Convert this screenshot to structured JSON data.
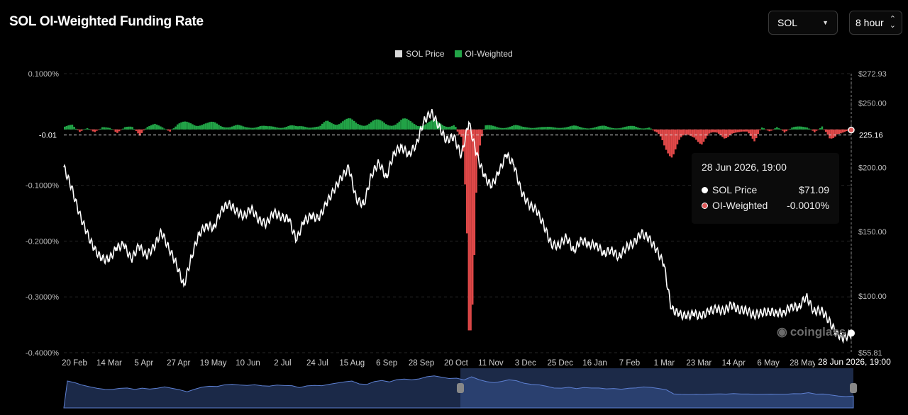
{
  "title": "SOL OI-Weighted Funding Rate",
  "controls": {
    "symbol": "SOL",
    "interval": "8 hour"
  },
  "legend": [
    {
      "label": "SOL Price",
      "color": "#d9d9d9"
    },
    {
      "label": "OI-Weighted",
      "color": "#22a447"
    }
  ],
  "tooltip": {
    "title": "28 Jun 2026, 19:00",
    "rows": [
      {
        "label": "SOL Price",
        "value": "$71.09",
        "dot_color": "#ffffff"
      },
      {
        "label": "OI-Weighted",
        "value": "-0.0010%",
        "dot_color": "#e05a5a"
      }
    ]
  },
  "watermark": "coinglass",
  "crosshair": {
    "x_label": "28 Jun 2026, 19:00",
    "y_left_label": "-0.01",
    "y_right_label": "225.16"
  },
  "chart_data": {
    "type": "line",
    "x_tick_labels": [
      "20 Feb",
      "14 Mar",
      "5 Apr",
      "27 Apr",
      "19 May",
      "10 Jun",
      "2 Jul",
      "24 Jul",
      "15 Aug",
      "6 Sep",
      "28 Sep",
      "20 Oct",
      "11 Nov",
      "3 Dec",
      "25 Dec",
      "16 Jan",
      "7 Feb",
      "1 Mar",
      "23 Mar",
      "14 Apr",
      "6 May",
      "28 May"
    ],
    "left_axis": {
      "ticks": [
        "0.1000%",
        "0",
        "-0.1000%",
        "-0.2000%",
        "-0.3000%",
        "-0.4000%"
      ],
      "values": [
        0.1,
        0,
        -0.1,
        -0.2,
        -0.3,
        -0.4
      ],
      "ylim": [
        -0.4,
        0.1
      ]
    },
    "right_axis": {
      "ticks": [
        "$272.93",
        "$250.00",
        "$200.00",
        "$150.00",
        "$100.00",
        "$55.81"
      ],
      "values": [
        272.93,
        250,
        200,
        150,
        100,
        55.81
      ],
      "ylim": [
        55.81,
        272.93
      ]
    },
    "series": [
      {
        "name": "SOL Price",
        "axis": "right",
        "color": "#ffffff",
        "points": [
          [
            0,
            200
          ],
          [
            1,
            185
          ],
          [
            2,
            165
          ],
          [
            3,
            150
          ],
          [
            4,
            137
          ],
          [
            5,
            129
          ],
          [
            6,
            128
          ],
          [
            7,
            137
          ],
          [
            8,
            140
          ],
          [
            9,
            128
          ],
          [
            10,
            139
          ],
          [
            11,
            131
          ],
          [
            12,
            138
          ],
          [
            13,
            150
          ],
          [
            14,
            137
          ],
          [
            15,
            125
          ],
          [
            16,
            108
          ],
          [
            17,
            130
          ],
          [
            18,
            148
          ],
          [
            19,
            155
          ],
          [
            20,
            153
          ],
          [
            21,
            167
          ],
          [
            22,
            172
          ],
          [
            23,
            166
          ],
          [
            24,
            162
          ],
          [
            25,
            168
          ],
          [
            26,
            159
          ],
          [
            27,
            156
          ],
          [
            28,
            165
          ],
          [
            29,
            161
          ],
          [
            30,
            160
          ],
          [
            31,
            143
          ],
          [
            32,
            158
          ],
          [
            33,
            162
          ],
          [
            34,
            160
          ],
          [
            35,
            172
          ],
          [
            36,
            182
          ],
          [
            37,
            192
          ],
          [
            38,
            200
          ],
          [
            39,
            175
          ],
          [
            40,
            171
          ],
          [
            41,
            194
          ],
          [
            42,
            204
          ],
          [
            43,
            192
          ],
          [
            44,
            211
          ],
          [
            45,
            216
          ],
          [
            46,
            210
          ],
          [
            47,
            218
          ],
          [
            48,
            236
          ],
          [
            49,
            243
          ],
          [
            50,
            232
          ],
          [
            51,
            221
          ],
          [
            52,
            224
          ],
          [
            53,
            209
          ],
          [
            54,
            235
          ],
          [
            55,
            211
          ],
          [
            56,
            194
          ],
          [
            57,
            185
          ],
          [
            58,
            196
          ],
          [
            59,
            210
          ],
          [
            60,
            202
          ],
          [
            61,
            181
          ],
          [
            62,
            171
          ],
          [
            63,
            167
          ],
          [
            64,
            155
          ],
          [
            65,
            140
          ],
          [
            66,
            139
          ],
          [
            67,
            146
          ],
          [
            68,
            135
          ],
          [
            69,
            144
          ],
          [
            70,
            140
          ],
          [
            71,
            140
          ],
          [
            72,
            133
          ],
          [
            73,
            136
          ],
          [
            74,
            130
          ],
          [
            75,
            138
          ],
          [
            76,
            141
          ],
          [
            77,
            149
          ],
          [
            78,
            145
          ],
          [
            79,
            136
          ],
          [
            80,
            125
          ],
          [
            81,
            90
          ],
          [
            82,
            86
          ],
          [
            83,
            84
          ],
          [
            84,
            86
          ],
          [
            85,
            84
          ],
          [
            86,
            88
          ],
          [
            87,
            90
          ],
          [
            88,
            88
          ],
          [
            89,
            93
          ],
          [
            90,
            89
          ],
          [
            91,
            89
          ],
          [
            92,
            85
          ],
          [
            93,
            87
          ],
          [
            94,
            88
          ],
          [
            95,
            87
          ],
          [
            96,
            87
          ],
          [
            97,
            92
          ],
          [
            98,
            91
          ],
          [
            99,
            100
          ],
          [
            100,
            88
          ],
          [
            101,
            89
          ],
          [
            102,
            81
          ],
          [
            103,
            71
          ],
          [
            104,
            67
          ],
          [
            105,
            71
          ]
        ]
      },
      {
        "name": "OI-Weighted",
        "axis": "left",
        "color_positive": "#22a447",
        "color_negative": "#e04848",
        "points": [
          [
            0,
            0.005
          ],
          [
            1,
            0.006
          ],
          [
            2,
            -0.004
          ],
          [
            3,
            0.004
          ],
          [
            4,
            -0.006
          ],
          [
            5,
            0.003
          ],
          [
            6,
            0.004
          ],
          [
            7,
            -0.005
          ],
          [
            8,
            0.003
          ],
          [
            9,
            0.004
          ],
          [
            10,
            -0.008
          ],
          [
            11,
            0.005
          ],
          [
            12,
            0.007
          ],
          [
            13,
            0.004
          ],
          [
            14,
            -0.003
          ],
          [
            15,
            0.008
          ],
          [
            16,
            0.01
          ],
          [
            17,
            0.012
          ],
          [
            18,
            0.011
          ],
          [
            19,
            0.009
          ],
          [
            20,
            0.01
          ],
          [
            21,
            0.008
          ],
          [
            22,
            0.005
          ],
          [
            23,
            0.006
          ],
          [
            24,
            0.004
          ],
          [
            25,
            0.005
          ],
          [
            26,
            0.006
          ],
          [
            27,
            0.004
          ],
          [
            28,
            0.005
          ],
          [
            29,
            0.005
          ],
          [
            30,
            0.006
          ],
          [
            31,
            0.004
          ],
          [
            32,
            0.007
          ],
          [
            33,
            0.005
          ],
          [
            34,
            0.004
          ],
          [
            35,
            0.013
          ],
          [
            36,
            0.015
          ],
          [
            37,
            0.016
          ],
          [
            38,
            0.014
          ],
          [
            39,
            0.01
          ],
          [
            40,
            0.012
          ],
          [
            41,
            0.014
          ],
          [
            42,
            0.012
          ],
          [
            43,
            0.01
          ],
          [
            44,
            0.013
          ],
          [
            45,
            0.015
          ],
          [
            46,
            0.012
          ],
          [
            47,
            0.01
          ],
          [
            48,
            0.011
          ],
          [
            49,
            0.012
          ],
          [
            50,
            0.01
          ],
          [
            51,
            0.008
          ],
          [
            52,
            0.009
          ],
          [
            53,
            -0.028
          ],
          [
            54,
            -0.36
          ],
          [
            55,
            -0.04
          ],
          [
            56,
            0.006
          ],
          [
            57,
            0.005
          ],
          [
            58,
            0.004
          ],
          [
            59,
            0.005
          ],
          [
            60,
            0.006
          ],
          [
            61,
            0.004
          ],
          [
            62,
            0.005
          ],
          [
            63,
            0.004
          ],
          [
            64,
            0.003
          ],
          [
            65,
            0.004
          ],
          [
            66,
            0.005
          ],
          [
            67,
            0.004
          ],
          [
            68,
            0.005
          ],
          [
            69,
            0.004
          ],
          [
            70,
            0.003
          ],
          [
            71,
            0.004
          ],
          [
            72,
            0.005
          ],
          [
            73,
            0.004
          ],
          [
            74,
            0.003
          ],
          [
            75,
            0.004
          ],
          [
            76,
            0.005
          ],
          [
            77,
            0.003
          ],
          [
            78,
            0.004
          ],
          [
            79,
            -0.01
          ],
          [
            80,
            -0.03
          ],
          [
            81,
            -0.035
          ],
          [
            82,
            -0.02
          ],
          [
            83,
            -0.015
          ],
          [
            84,
            -0.012
          ],
          [
            85,
            -0.02
          ],
          [
            86,
            -0.01
          ],
          [
            87,
            -0.008
          ],
          [
            88,
            -0.012
          ],
          [
            89,
            -0.006
          ],
          [
            90,
            -0.008
          ],
          [
            91,
            -0.004
          ],
          [
            92,
            -0.015
          ],
          [
            93,
            0.004
          ],
          [
            94,
            -0.006
          ],
          [
            95,
            0.005
          ],
          [
            96,
            -0.004
          ],
          [
            97,
            0.003
          ],
          [
            98,
            0.004
          ],
          [
            99,
            0.005
          ],
          [
            100,
            -0.004
          ],
          [
            101,
            0.004
          ],
          [
            102,
            -0.02
          ],
          [
            103,
            -0.006
          ],
          [
            104,
            -0.004
          ],
          [
            105,
            -0.001
          ]
        ]
      }
    ],
    "grid": true,
    "legend_position": "top-center"
  }
}
